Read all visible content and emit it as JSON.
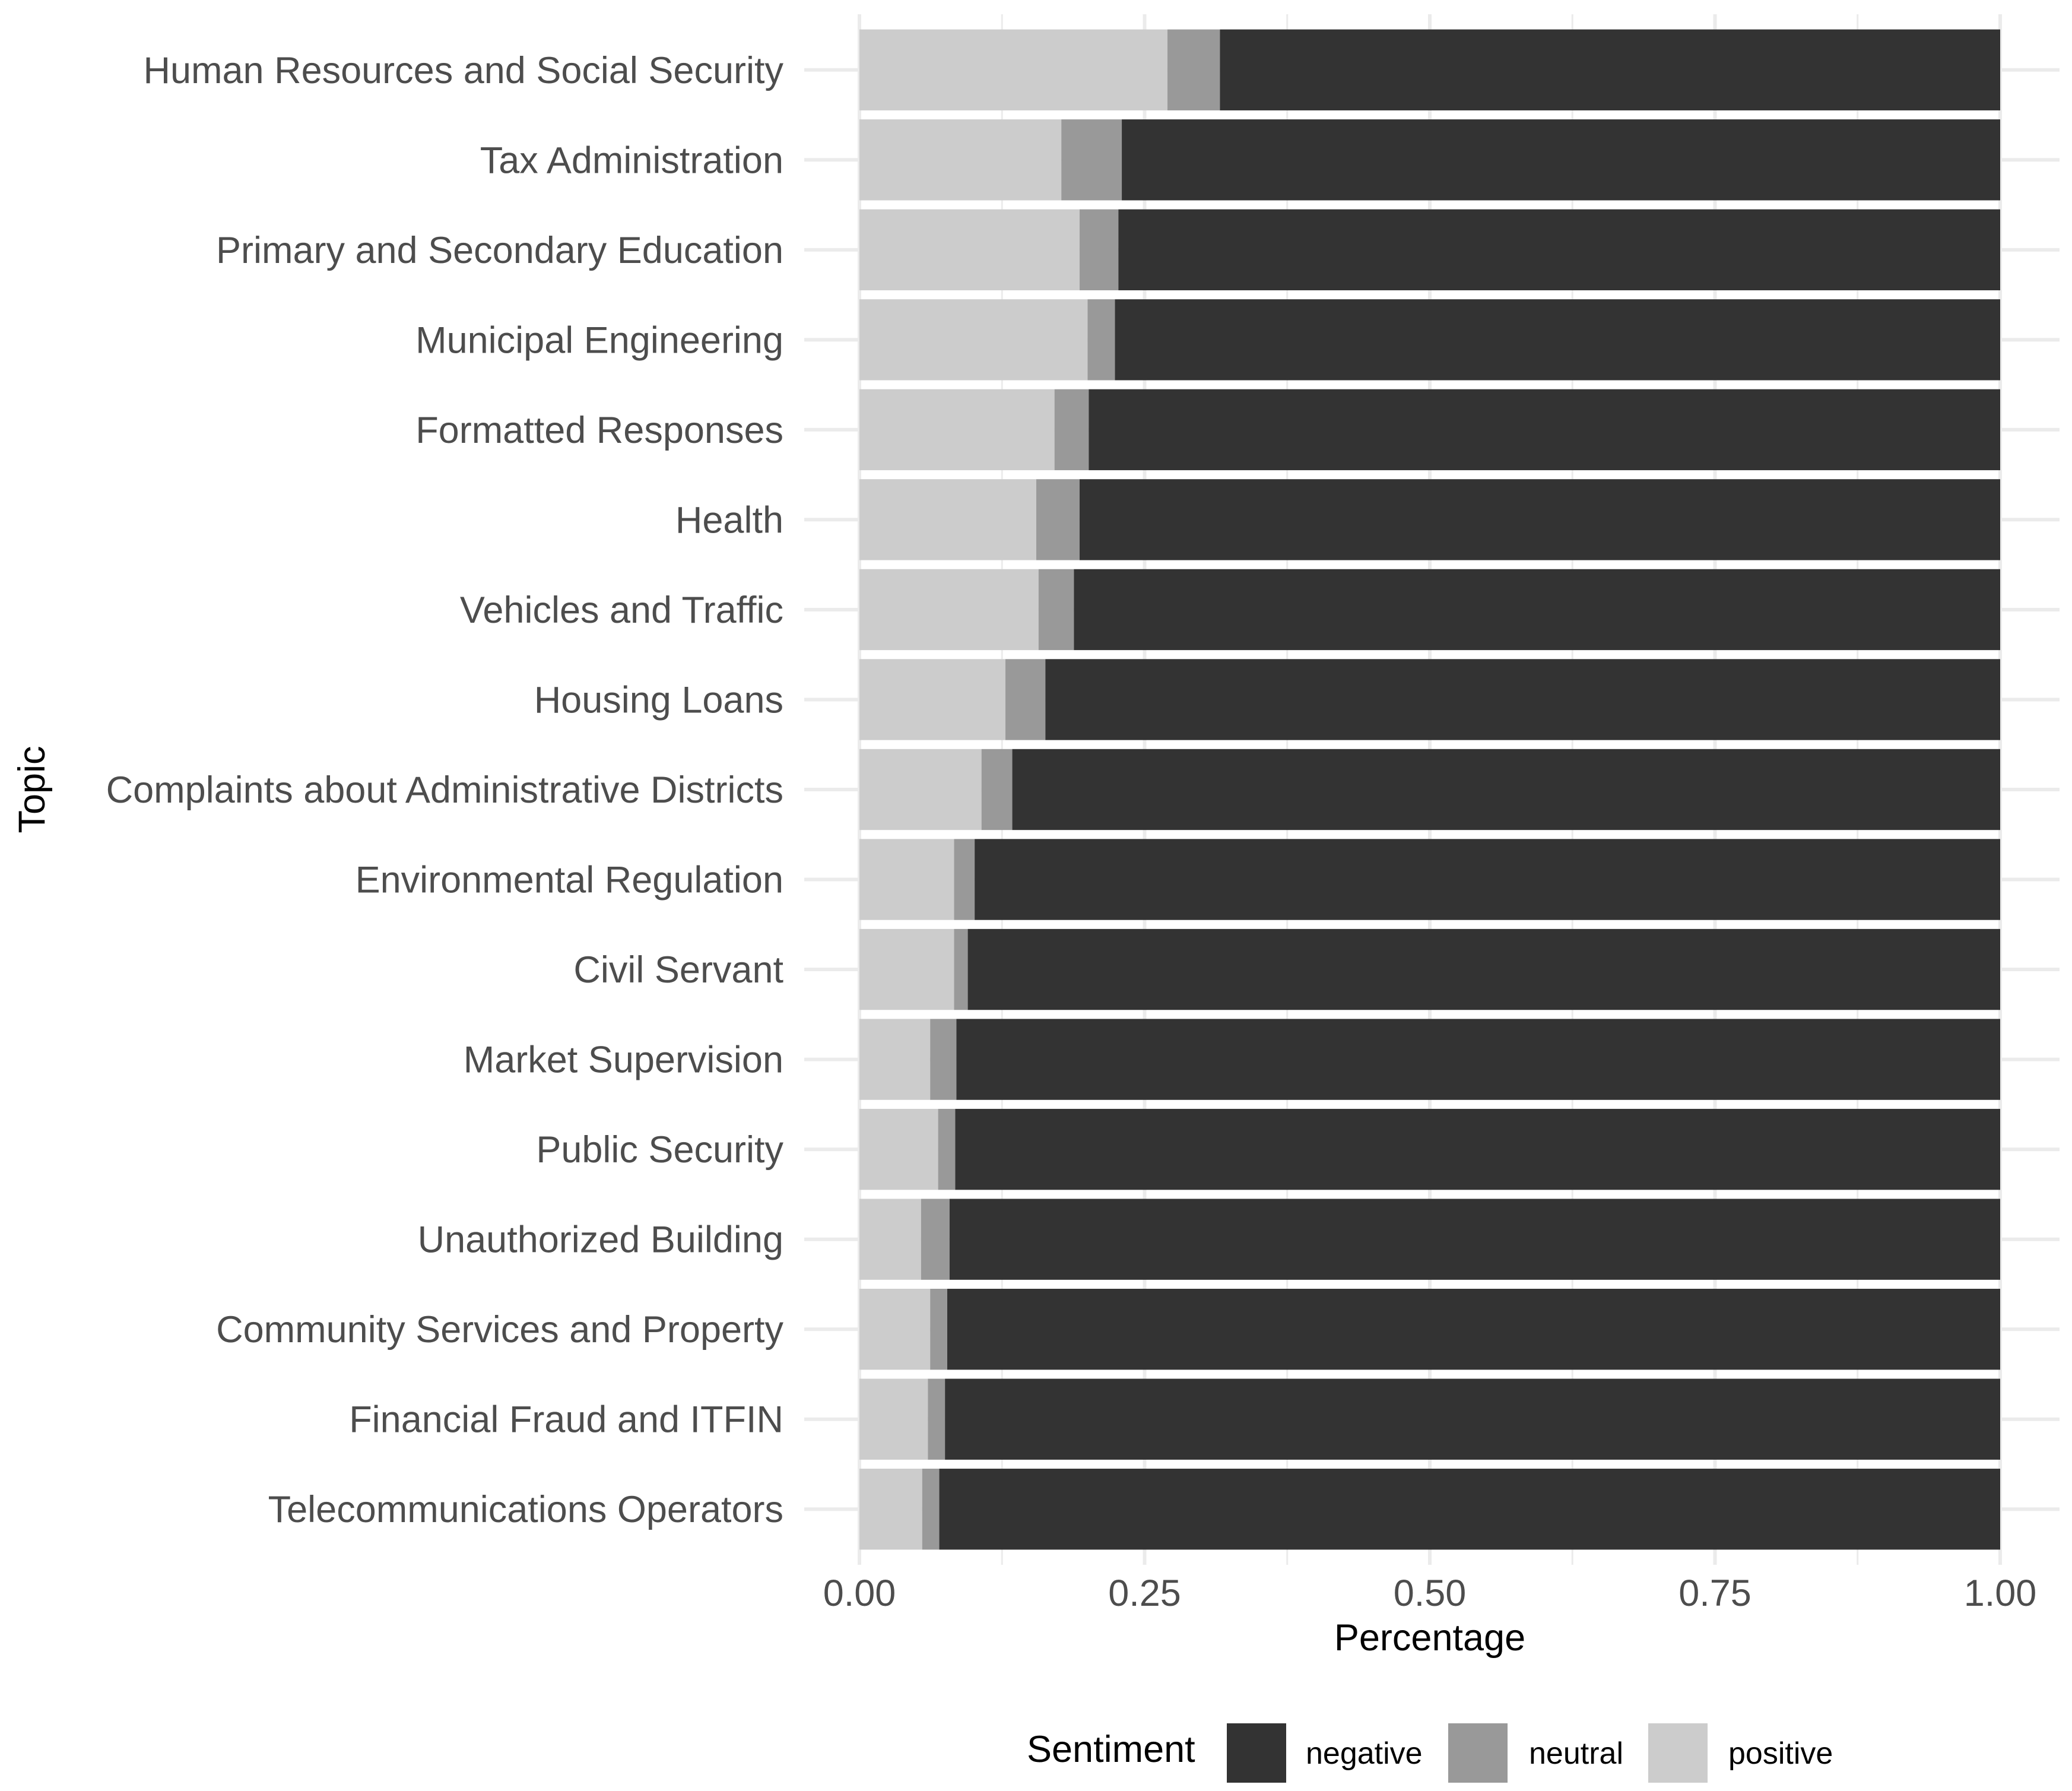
{
  "chart_data": {
    "type": "bar",
    "orientation": "horizontal",
    "stacked": true,
    "title": "",
    "xlabel": "Percentage",
    "ylabel": "Topic",
    "xlim": [
      0,
      1
    ],
    "x_ticks": [
      0,
      0.25,
      0.5,
      0.75,
      1
    ],
    "x_tick_labels": [
      "0.00",
      "0.25",
      "0.50",
      "0.75",
      "1.00"
    ],
    "grid": true,
    "legend_position": "bottom",
    "legend_title": "Sentiment",
    "categories": [
      "Human Resources and Social Security",
      "Tax Administration",
      "Primary and Secondary Education",
      "Municipal Engineering",
      "Formatted Responses",
      "Health",
      "Vehicles and Traffic",
      "Housing Loans",
      "Complaints about Administrative Districts",
      "Environmental Regulation",
      "Civil Servant",
      "Market Supervision",
      "Public Security",
      "Unauthorized Building",
      "Community Services and Property",
      "Financial Fraud and ITFIN",
      "Telecommunications Operators"
    ],
    "series": [
      {
        "name": "positive",
        "color": "#cccccc",
        "values": [
          0.27,
          0.177,
          0.193,
          0.2,
          0.171,
          0.155,
          0.157,
          0.128,
          0.107,
          0.083,
          0.083,
          0.062,
          0.069,
          0.054,
          0.062,
          0.06,
          0.055
        ]
      },
      {
        "name": "neutral",
        "color": "#999999",
        "values": [
          0.046,
          0.053,
          0.034,
          0.024,
          0.03,
          0.038,
          0.031,
          0.035,
          0.027,
          0.018,
          0.012,
          0.023,
          0.015,
          0.025,
          0.015,
          0.015,
          0.015
        ]
      },
      {
        "name": "negative",
        "color": "#333333",
        "values": [
          0.684,
          0.77,
          0.773,
          0.776,
          0.799,
          0.807,
          0.812,
          0.837,
          0.866,
          0.899,
          0.905,
          0.915,
          0.916,
          0.921,
          0.923,
          0.925,
          0.93
        ]
      }
    ],
    "legend_order": [
      "negative",
      "neutral",
      "positive"
    ]
  }
}
